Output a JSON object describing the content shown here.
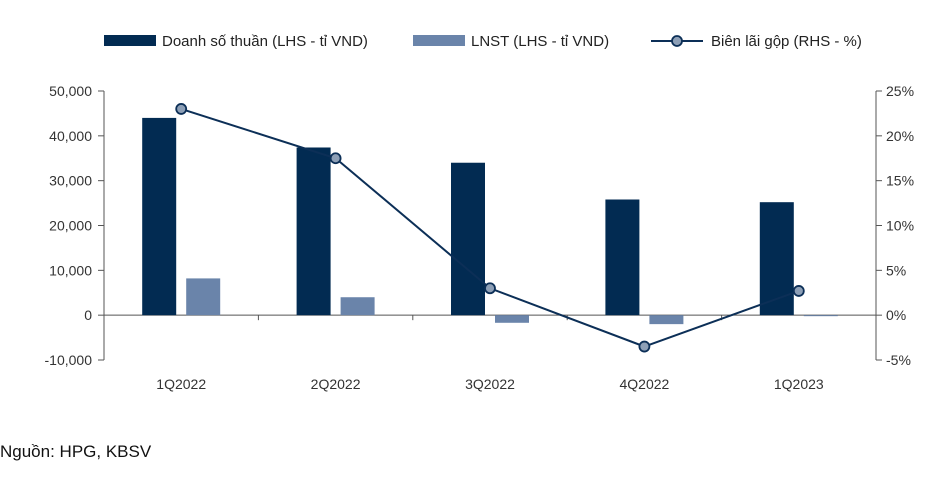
{
  "chart_data": {
    "type": "bar",
    "categories": [
      "1Q2022",
      "2Q2022",
      "3Q2022",
      "4Q2022",
      "1Q2023"
    ],
    "series": [
      {
        "name": "Doanh số thuần (LHS - tỉ VND)",
        "type": "bar",
        "axis": "left",
        "color": "#022b52",
        "values": [
          44000,
          37400,
          34000,
          25800,
          25200
        ]
      },
      {
        "name": "LNST (LHS - tỉ VND)",
        "type": "bar",
        "axis": "left",
        "color": "#6a84aa",
        "values": [
          8200,
          4000,
          -1700,
          -2000,
          -100
        ]
      },
      {
        "name": "Biên lãi gộp (RHS - %)",
        "type": "line",
        "axis": "right",
        "color": "#0c2f57",
        "marker_fill": "#8d9fb6",
        "values": [
          23,
          17.5,
          3,
          -3.5,
          2.7
        ]
      }
    ],
    "y_left": {
      "min": -10000,
      "max": 50000,
      "ticks": [
        "-10,000",
        "0",
        "10,000",
        "20,000",
        "30,000",
        "40,000",
        "50,000"
      ],
      "tick_values": [
        -10000,
        0,
        10000,
        20000,
        30000,
        40000,
        50000
      ]
    },
    "y_right": {
      "min": -5,
      "max": 25,
      "ticks": [
        "-5%",
        "0%",
        "5%",
        "10%",
        "15%",
        "20%",
        "25%"
      ],
      "tick_values": [
        -5,
        0,
        5,
        10,
        15,
        20,
        25
      ]
    },
    "legend_position": "top",
    "grid": false
  },
  "source": "Nguồn: HPG, KBSV"
}
